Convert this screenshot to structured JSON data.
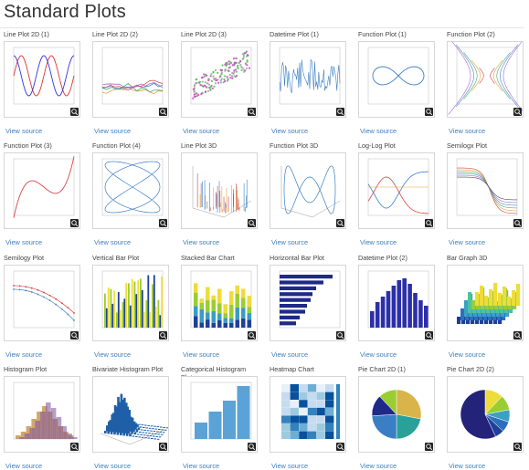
{
  "page": {
    "title": "Standard Plots"
  },
  "view_source_label": "View source",
  "colors": {
    "link": "#3f7fbf",
    "border": "#d6d6d6"
  },
  "cards": [
    {
      "title": "Line Plot 2D (1)",
      "icon": "sine-cosine-curves"
    },
    {
      "title": "Line Plot 2D (2)",
      "icon": "multi-line-chart"
    },
    {
      "title": "Line Plot 2D (3)",
      "icon": "scatter-cloud"
    },
    {
      "title": "Datetime Plot (1)",
      "icon": "time-series-line"
    },
    {
      "title": "Function Plot (1)",
      "icon": "lemniscate-curve"
    },
    {
      "title": "Function Plot (2)",
      "icon": "hyperbola-family"
    },
    {
      "title": "Function Plot (3)",
      "icon": "cubic-curve"
    },
    {
      "title": "Function Plot (4)",
      "icon": "lissajous-curve"
    },
    {
      "title": "Line Plot 3D",
      "icon": "stem-3d"
    },
    {
      "title": "Function Plot 3D",
      "icon": "parametric-3d"
    },
    {
      "title": "Log-Log Plot",
      "icon": "loglog-curves"
    },
    {
      "title": "Semilogx Plot",
      "icon": "semilogx-curves"
    },
    {
      "title": "Semilogy Plot",
      "icon": "semilogy-lines"
    },
    {
      "title": "Vertical Bar Plot",
      "icon": "grouped-bars"
    },
    {
      "title": "Stacked Bar Chart",
      "icon": "stacked-bars"
    },
    {
      "title": "Horizontal Bar Plot",
      "icon": "horizontal-bars"
    },
    {
      "title": "Datetime Plot (2)",
      "icon": "date-bars"
    },
    {
      "title": "Bar Graph 3D",
      "icon": "bars-3d"
    },
    {
      "title": "Histogram Plot",
      "icon": "overlaid-histograms"
    },
    {
      "title": "Bivariate Histogram Plot",
      "icon": "bivariate-hist-3d"
    },
    {
      "title": "Categorical Histogram Plot",
      "icon": "categorical-bars"
    },
    {
      "title": "Heatmap Chart",
      "icon": "heatmap-grid"
    },
    {
      "title": "Pie Chart 2D (1)",
      "icon": "pie-chart-a"
    },
    {
      "title": "Pie Chart 2D (2)",
      "icon": "pie-chart-b"
    }
  ]
}
